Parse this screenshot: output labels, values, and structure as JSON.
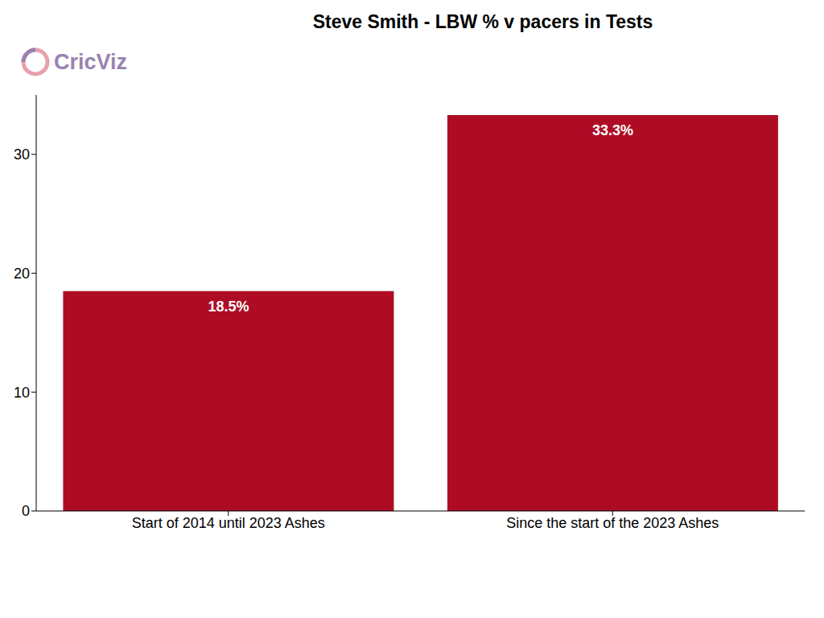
{
  "chart_data": {
    "type": "bar",
    "title": "Steve Smith - LBW % v pacers in Tests",
    "source": "CricViz",
    "categories": [
      "Start of 2014 until 2023 Ashes",
      "Since the start of the 2023 Ashes"
    ],
    "values": [
      18.5,
      33.3
    ],
    "value_labels": [
      "18.5%",
      "33.3%"
    ],
    "data_labels": true,
    "color": "#ae0c25",
    "ylim": [
      0,
      35
    ],
    "yticks": [
      0,
      10,
      20,
      30
    ],
    "grid": false
  }
}
